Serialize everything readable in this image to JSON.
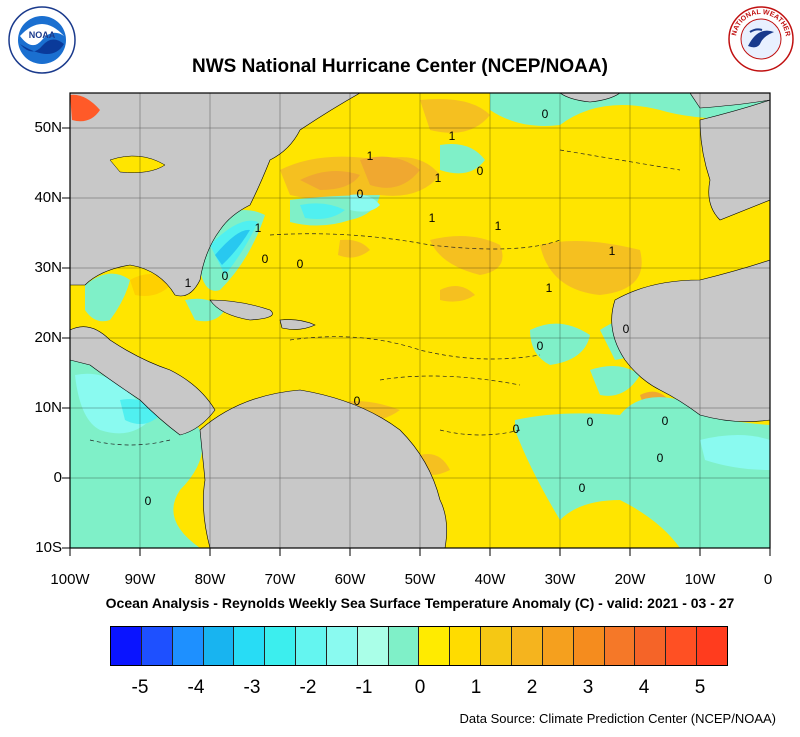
{
  "header": {
    "title": "NWS National Hurricane Center (NCEP/NOAA)",
    "left_logo": {
      "icon": "noaa-logo-icon",
      "text": "NOAA"
    },
    "right_logo": {
      "icon": "nws-logo-icon",
      "text": "NATIONAL WEATHER SERVICE"
    }
  },
  "map": {
    "subtitle": "Ocean Analysis - Reynolds Weekly Sea Surface Temperature Anomaly (C) - valid: 2021 - 03 - 27",
    "lon_labels": [
      "100W",
      "90W",
      "80W",
      "70W",
      "60W",
      "50W",
      "40W",
      "30W",
      "20W",
      "10W",
      "0"
    ],
    "lat_labels": [
      "50N",
      "40N",
      "30N",
      "20N",
      "10N",
      "0",
      "10S"
    ],
    "lon_range": [
      -100,
      0
    ],
    "lat_range": [
      -10,
      55
    ],
    "contour_labels": [
      "1",
      "1",
      "1",
      "1",
      "1",
      "1",
      "1",
      "1",
      "1",
      "0",
      "0",
      "0",
      "0",
      "0",
      "0",
      "0",
      "0",
      "0",
      "0",
      "0",
      "0",
      "0",
      "0",
      "0"
    ],
    "colors": {
      "land": "#c8c8c8",
      "anom_0_to_0_5": "#ffe500",
      "anom_0_5_to_1": "#ffd000",
      "anom_1_to_1_5": "#f5c020",
      "anom_1_5_to_2": "#f0a830",
      "anom_4_to_5": "#ff5a28",
      "anom_m0_5_to_0": "#7ff0c8",
      "anom_m1_to_m0_5": "#8afaf0",
      "anom_m1_5_to_m1": "#50f0f0",
      "anom_m2_to_m1_5": "#28c8f0"
    }
  },
  "legend": {
    "labels": [
      "-5",
      "-4",
      "-3",
      "-2",
      "-1",
      "0",
      "1",
      "2",
      "3",
      "4",
      "5"
    ],
    "colors": [
      "#0a14ff",
      "#1e50ff",
      "#1e90ff",
      "#18b4f0",
      "#28dcf5",
      "#3ceeee",
      "#64f5f0",
      "#8afaf0",
      "#aaffe8",
      "#7ff0c8",
      "#ffeb00",
      "#ffdc00",
      "#f5c814",
      "#f5b41e",
      "#f5a01e",
      "#f58c1e",
      "#f57828",
      "#f56428",
      "#ff5023",
      "#ff3c1e"
    ]
  },
  "footer": {
    "source": "Data Source: Climate Prediction Center (NCEP/NOAA)"
  }
}
